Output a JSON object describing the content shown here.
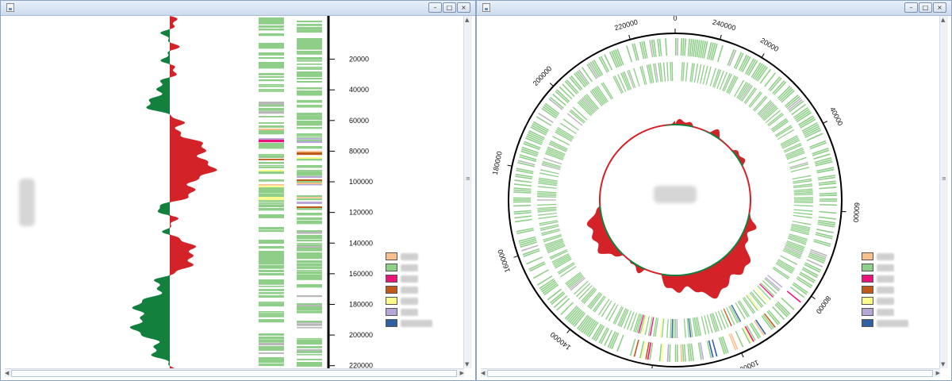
{
  "left_window": {
    "title": "",
    "axis_ticks": [
      "20000",
      "40000",
      "60000",
      "80000",
      "100000",
      "120000",
      "140000",
      "160000",
      "180000",
      "200000",
      "220000"
    ]
  },
  "right_window": {
    "title": "",
    "ring_ticks": [
      "0",
      "20000",
      "40000",
      "60000",
      "80000",
      "100000",
      "120000",
      "140000",
      "160000",
      "180000",
      "200000",
      "220000",
      "240000"
    ]
  },
  "window_controls": {
    "minimize": "–",
    "maximize": "□",
    "close": "×"
  },
  "legend_colors": [
    "#f9c08e",
    "#8fd08a",
    "#e8147a",
    "#c05a1a",
    "#fdfd8c",
    "#b8a6d6",
    "#3060a0"
  ],
  "colors": {
    "gc_skew_positive": "#d32228",
    "gc_skew_negative": "#14803e",
    "feature_green": "#8fce89",
    "feature_gray": "#b8b8b8",
    "axis": "#000000"
  },
  "genome_length": 230000
}
